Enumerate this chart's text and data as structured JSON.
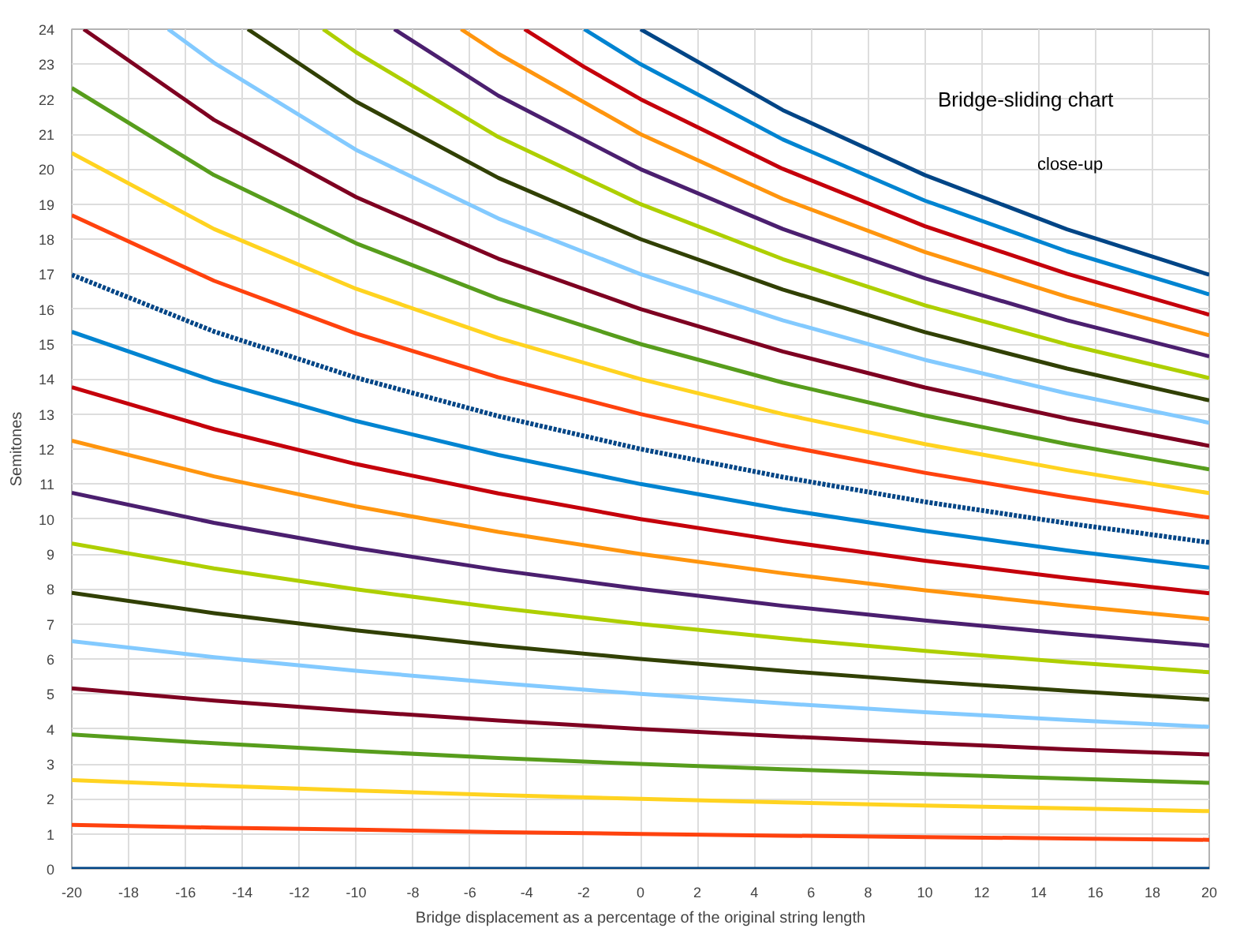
{
  "chart_data": {
    "type": "line",
    "title": "Bridge-sliding chart",
    "annotations": [
      "close-up"
    ],
    "xlabel": "Bridge displacement as a percentage of the original string length",
    "ylabel": "Semitones",
    "xlim": [
      -20,
      20
    ],
    "ylim": [
      0,
      24
    ],
    "xticks": [
      -20,
      -18,
      -16,
      -14,
      -12,
      -10,
      -8,
      -6,
      -4,
      -2,
      0,
      2,
      4,
      6,
      8,
      10,
      12,
      14,
      16,
      18,
      20
    ],
    "yticks": [
      0,
      1,
      2,
      3,
      4,
      5,
      6,
      7,
      8,
      9,
      10,
      11,
      12,
      13,
      14,
      15,
      16,
      17,
      18,
      19,
      20,
      21,
      22,
      23,
      24
    ],
    "grid": true,
    "marker": "none",
    "line_style": "solid",
    "x": [
      -20,
      -15,
      -10,
      -5,
      0,
      5,
      10,
      15,
      20
    ],
    "series": [
      {
        "color": "#004586",
        "values": [
          0,
          0,
          0,
          0,
          0,
          0,
          0,
          0,
          0
        ]
      },
      {
        "color": "#ff420e",
        "values": [
          1.26,
          1.18,
          1.12,
          1.05,
          1,
          0.95,
          0.91,
          0.87,
          0.83
        ]
      },
      {
        "color": "#ffd320",
        "values": [
          2.54,
          2.38,
          2.24,
          2.11,
          2,
          1.9,
          1.81,
          1.73,
          1.65
        ]
      },
      {
        "color": "#579d1c",
        "values": [
          3.84,
          3.59,
          3.37,
          3.17,
          3,
          2.85,
          2.71,
          2.58,
          2.46
        ]
      },
      {
        "color": "#7e0021",
        "values": [
          5.16,
          4.81,
          4.51,
          4.24,
          4,
          3.79,
          3.6,
          3.42,
          3.27
        ]
      },
      {
        "color": "#83caff",
        "values": [
          6.51,
          6.05,
          5.66,
          5.31,
          5,
          4.73,
          4.48,
          4.26,
          4.06
        ]
      },
      {
        "color": "#314004",
        "values": [
          7.89,
          7.31,
          6.82,
          6.38,
          6,
          5.66,
          5.36,
          5.09,
          4.84
        ]
      },
      {
        "color": "#aecf00",
        "values": [
          9.3,
          8.59,
          7.99,
          7.46,
          7,
          6.59,
          6.23,
          5.91,
          5.62
        ]
      },
      {
        "color": "#4b1f6f",
        "values": [
          10.75,
          9.89,
          9.17,
          8.54,
          8,
          7.52,
          7.1,
          6.72,
          6.38
        ]
      },
      {
        "color": "#ff950e",
        "values": [
          12.24,
          11.22,
          10.36,
          9.63,
          9,
          8.45,
          7.96,
          7.53,
          7.14
        ]
      },
      {
        "color": "#c5000b",
        "values": [
          13.77,
          12.57,
          11.57,
          10.73,
          10,
          9.37,
          8.81,
          8.32,
          7.88
        ]
      },
      {
        "color": "#0084d1",
        "values": [
          15.35,
          13.95,
          12.8,
          11.83,
          11,
          10.28,
          9.66,
          9.1,
          8.61
        ]
      },
      {
        "color": "#004586",
        "line_style": "dotted",
        "values": [
          16.98,
          15.36,
          14.04,
          12.94,
          12,
          11.2,
          10.49,
          9.88,
          9.33
        ]
      },
      {
        "color": "#ff420e",
        "values": [
          18.68,
          16.81,
          15.3,
          14.05,
          13,
          12.1,
          11.32,
          10.64,
          10.04
        ]
      },
      {
        "color": "#ffd320",
        "values": [
          20.46,
          18.29,
          16.58,
          15.17,
          14,
          13,
          12.14,
          11.4,
          10.74
        ]
      },
      {
        "color": "#579d1c",
        "values": [
          22.32,
          19.83,
          17.88,
          16.3,
          15,
          13.9,
          12.96,
          12.14,
          11.42
        ]
      },
      {
        "color": "#7e0021",
        "x": [
          -19.58,
          -15,
          -10,
          -5,
          0,
          5,
          10,
          15,
          20
        ],
        "values": [
          24,
          21.41,
          19.2,
          17.44,
          16,
          14.79,
          13.76,
          12.87,
          12.09
        ]
      },
      {
        "color": "#83caff",
        "x": [
          -16.61,
          -15,
          -10,
          -5,
          0,
          5,
          10,
          15,
          20
        ],
        "values": [
          24,
          23.04,
          20.55,
          18.59,
          17,
          15.68,
          14.55,
          13.59,
          12.75
        ]
      },
      {
        "color": "#314004",
        "x": [
          -13.81,
          -10,
          -5,
          0,
          5,
          10,
          15,
          20
        ],
        "values": [
          24,
          21.93,
          19.75,
          18,
          16.56,
          15.34,
          14.3,
          13.39
        ]
      },
      {
        "color": "#aecf00",
        "x": [
          -11.16,
          -10,
          -5,
          0,
          5,
          10,
          15,
          20
        ],
        "values": [
          24,
          23.34,
          20.92,
          19,
          17.43,
          16.11,
          14.99,
          14.03
        ]
      },
      {
        "color": "#4b1f6f",
        "x": [
          -8.66,
          -5,
          0,
          5,
          10,
          15,
          20
        ],
        "values": [
          24,
          22.1,
          20,
          18.29,
          16.88,
          15.68,
          14.65
        ]
      },
      {
        "color": "#ff950e",
        "x": [
          -6.31,
          -5,
          0,
          5,
          10,
          15,
          20
        ],
        "values": [
          24,
          23.3,
          21,
          19.15,
          17.63,
          16.35,
          15.25
        ]
      },
      {
        "color": "#c5000b",
        "x": [
          -4.08,
          -2,
          0,
          5,
          10,
          15,
          20
        ],
        "values": [
          24,
          22.93,
          22,
          20.01,
          18.37,
          17.01,
          15.84
        ]
      },
      {
        "color": "#0084d1",
        "x": [
          -1.98,
          0,
          5,
          10,
          15,
          20
        ],
        "values": [
          24,
          23,
          20.85,
          19.1,
          17.65,
          16.42
        ]
      },
      {
        "color": "#004586",
        "x": [
          0,
          5,
          10,
          15,
          20
        ],
        "values": [
          24,
          21.69,
          19.83,
          18.28,
          16.98
        ]
      }
    ]
  }
}
